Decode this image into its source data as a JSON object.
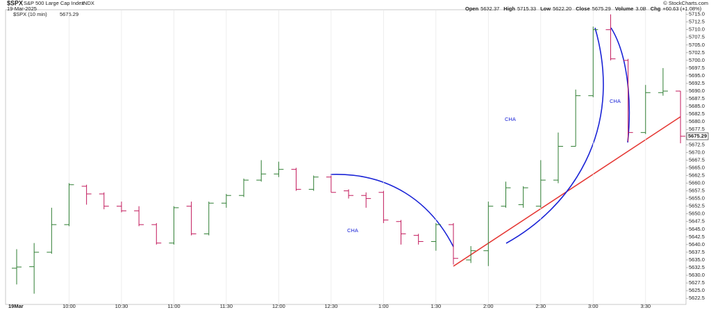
{
  "chart_data": {
    "type": "ohlc",
    "symbol": "$SPX",
    "name": "S&P 500 Large Cap Index",
    "exchange": "INDX",
    "date": "19-Mar-2025",
    "summary": [
      {
        "label": "Open",
        "value": "5632.37"
      },
      {
        "label": "High",
        "value": "5715.33"
      },
      {
        "label": "Low",
        "value": "5622.20"
      },
      {
        "label": "Volume",
        "value": "3.0B"
      },
      {
        "label": "Chg",
        "value": "+60.63 (+1.08%)"
      }
    ],
    "close_label": "Close",
    "credit": "© StockCharts.com",
    "legend": "$SPX (10 min)",
    "annotations": [
      "CHA",
      "CHA",
      "CHA"
    ],
    "up_color": "#2e7d32",
    "down_color": "#c2185b",
    "categories": [
      "19Mar",
      null,
      null,
      "10:00",
      null,
      null,
      "10:30",
      null,
      null,
      "11:00",
      null,
      null,
      "11:30",
      null,
      null,
      "12:00",
      null,
      null,
      "12:30",
      null,
      null,
      "1:00",
      null,
      null,
      "1:30",
      null,
      null,
      "2:00",
      null,
      null,
      "2:30",
      null,
      null,
      "3:00",
      null,
      null,
      "3:30",
      null,
      null
    ],
    "open": [
      5632.3,
      5632.8,
      5637.5,
      5646.5,
      5659,
      5656.5,
      5652.5,
      5651,
      5646.5,
      5640.5,
      5652.5,
      5643.5,
      5653.5,
      5656,
      5661,
      5663,
      5664.5,
      5658,
      5662,
      5657.5,
      5656,
      5657,
      5647.5,
      5643,
      5641,
      5646.5,
      5635,
      5638,
      5652.5,
      5653,
      5652.5,
      5661,
      5672,
      5688.5,
      5710,
      5700,
      5676.5,
      5689.5,
      5690
    ],
    "high": [
      5638.5,
      5640.5,
      5652,
      5660,
      5659.5,
      5657,
      5654,
      5652.5,
      5647,
      5652.5,
      5654,
      5654,
      5656.5,
      5661.5,
      5667.5,
      5667,
      5665,
      5662.5,
      5662.5,
      5658,
      5657,
      5657.5,
      5648,
      5643.5,
      5647,
      5647,
      5639.5,
      5654,
      5660.5,
      5659,
      5667.5,
      5676.5,
      5690.5,
      5711,
      5715,
      5700.5,
      5692,
      5697.5,
      5690
    ],
    "low": [
      5627,
      5624,
      5637,
      5646,
      5653,
      5651.5,
      5650.5,
      5646,
      5640,
      5640,
      5643,
      5643,
      5652,
      5655.5,
      5660.5,
      5662,
      5657.5,
      5657.5,
      5657,
      5655,
      5652,
      5647,
      5640,
      5640,
      5638,
      5633.5,
      5634,
      5633,
      5652,
      5652,
      5652,
      5660,
      5672,
      5688,
      5700,
      5673.5,
      5676,
      5688.5,
      5673
    ],
    "close": [
      5632.7,
      5637.5,
      5646.5,
      5659.5,
      5656.5,
      5652.5,
      5651,
      5646.5,
      5640.5,
      5652,
      5643.5,
      5653.5,
      5656,
      5661,
      5663,
      5664.5,
      5658,
      5662,
      5657,
      5656,
      5655,
      5648,
      5643.5,
      5641,
      5646.5,
      5635.5,
      5638,
      5652.5,
      5658.5,
      5658.5,
      5661,
      5672,
      5688.5,
      5710,
      5700.5,
      5676.5,
      5689.5,
      5690,
      5675.29
    ],
    "ylim": [
      5620.5,
      5716.5
    ],
    "yticks": [
      5622.5,
      {
        "value": 5625,
        "label": "5625.0"
      },
      5627.5,
      {
        "value": 5630,
        "label": "5630.0"
      },
      5632.5,
      {
        "value": 5635,
        "label": "5635.0"
      },
      5637.5,
      {
        "value": 5640,
        "label": "5640.0"
      },
      5642.5,
      {
        "value": 5645,
        "label": "5645.0"
      },
      5647.5,
      {
        "value": 5650,
        "label": "5650.0"
      },
      5652.5,
      {
        "value": 5655,
        "label": "5655.0"
      },
      5657.5,
      {
        "value": 5660,
        "label": "5660.0"
      },
      5662.5,
      {
        "value": 5665,
        "label": "5665.0"
      },
      5667.5,
      {
        "value": 5670,
        "label": "5670.0"
      },
      5672.5,
      {
        "value": 5675,
        "label": "5675.0"
      },
      5677.5,
      {
        "value": 5680,
        "label": "5680.0"
      },
      5682.5,
      {
        "value": 5685,
        "label": "5685.0"
      },
      5687.5,
      {
        "value": 5690,
        "label": "5690.0"
      },
      5692.5,
      {
        "value": 5695,
        "label": "5695.0"
      },
      5697.5,
      {
        "value": 5700,
        "label": "5700.0"
      },
      5702.5,
      {
        "value": 5705,
        "label": "5705.0"
      },
      5707.5,
      {
        "value": 5710,
        "label": "5710.0"
      },
      5712.5,
      {
        "value": 5715,
        "label": "5715.0"
      }
    ],
    "grid": true
  }
}
